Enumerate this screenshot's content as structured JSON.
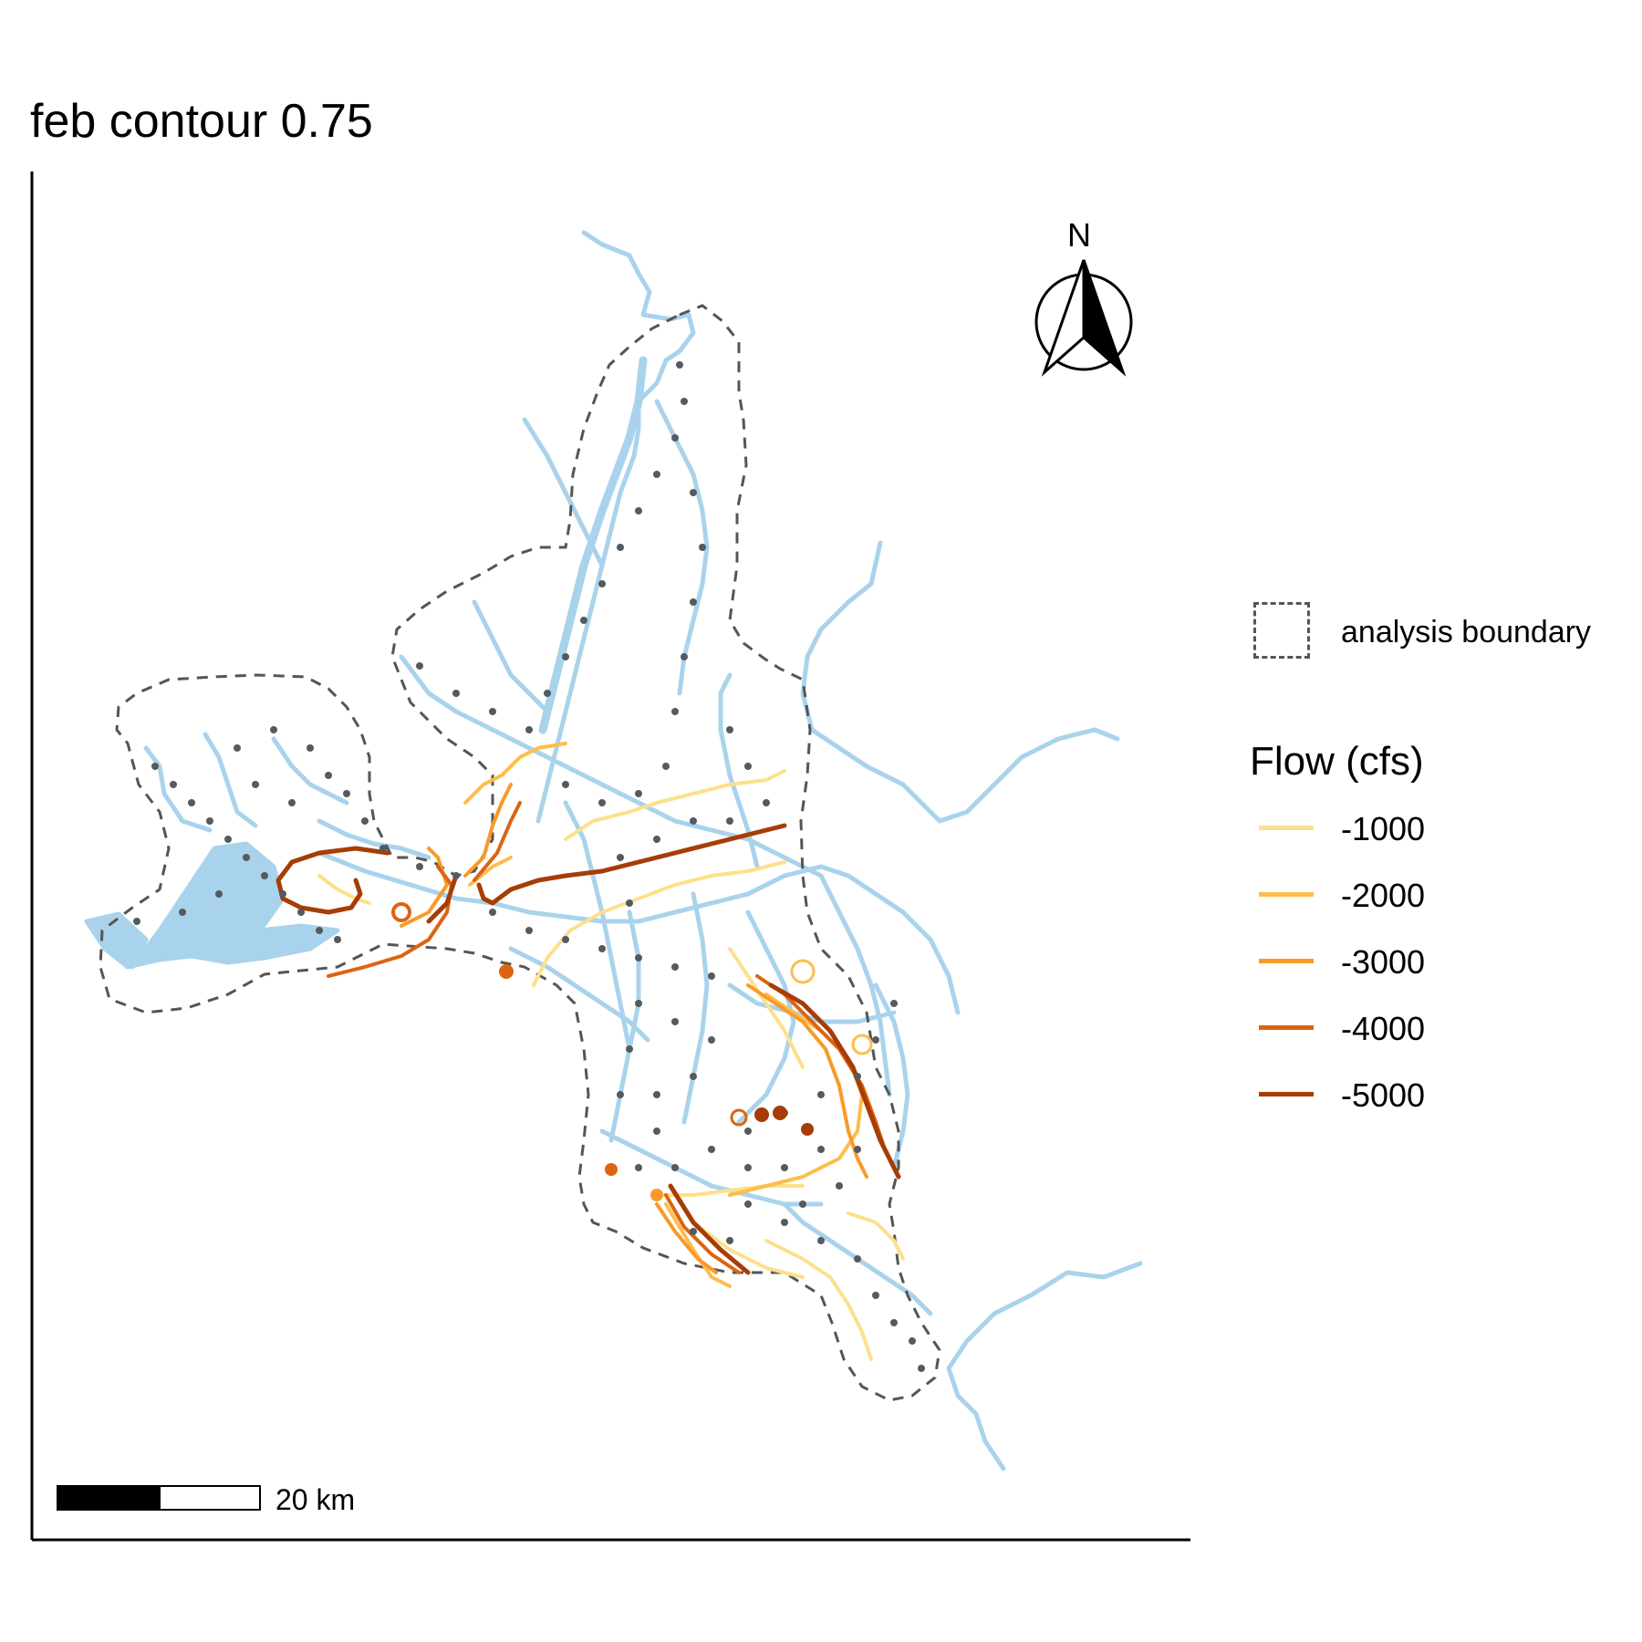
{
  "title": "feb contour 0.75",
  "north_arrow": {
    "label": "N"
  },
  "scale_bar": {
    "label": "20 km"
  },
  "legend": {
    "boundary_label": "analysis boundary",
    "flow_title": "Flow (cfs)",
    "flow_entries": [
      {
        "label": "-1000",
        "color": "#fde08c"
      },
      {
        "label": "-2000",
        "color": "#fdbe4a"
      },
      {
        "label": "-3000",
        "color": "#f89a2a"
      },
      {
        "label": "-4000",
        "color": "#dc6411"
      },
      {
        "label": "-5000",
        "color": "#a63d07"
      }
    ]
  },
  "colors": {
    "water": "#a9d3ec",
    "node": "#555a5f",
    "boundary": "#555555",
    "axis": "#000000"
  }
}
